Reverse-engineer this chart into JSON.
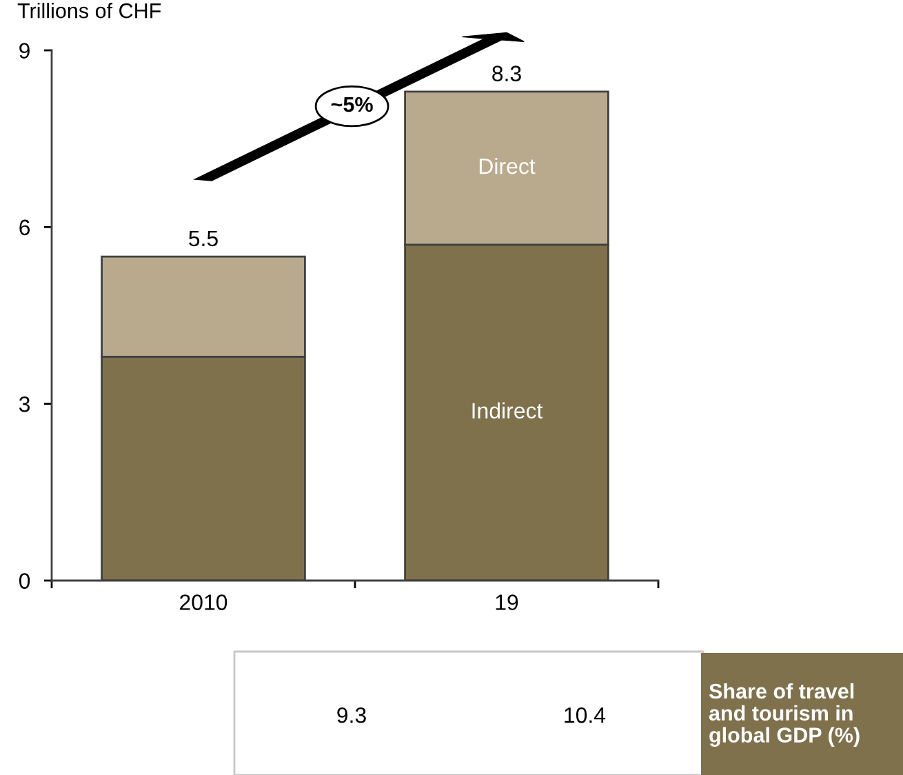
{
  "chart_data": {
    "type": "bar",
    "stacked": true,
    "ylabel": "Trillions of CHF",
    "categories": [
      "2010",
      "19"
    ],
    "series": [
      {
        "name": "Indirect",
        "color": "#80714d",
        "values": [
          3.8,
          5.7
        ]
      },
      {
        "name": "Direct",
        "color": "#b9aa8e",
        "values": [
          1.7,
          2.6
        ]
      }
    ],
    "totals": [
      "5.5",
      "8.3"
    ],
    "ylim": [
      0,
      9
    ],
    "yticks": [
      0,
      3,
      6,
      9
    ],
    "grid": false,
    "legend": false,
    "annotations": [
      "~5%",
      "9.3",
      "10.4",
      "Share of travel and tourism in global GDP (%)"
    ]
  }
}
